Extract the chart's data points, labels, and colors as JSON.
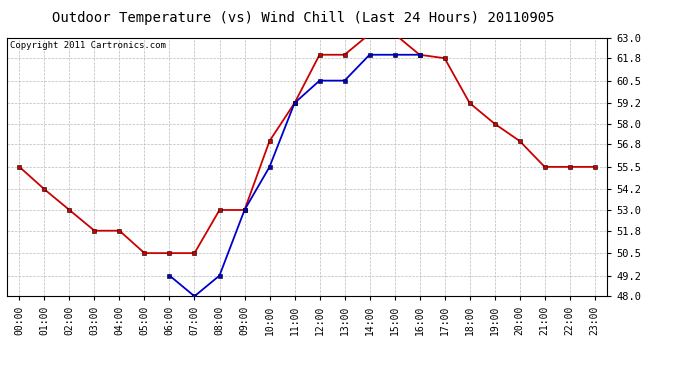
{
  "title": "Outdoor Temperature (vs) Wind Chill (Last 24 Hours) 20110905",
  "copyright": "Copyright 2011 Cartronics.com",
  "hours": [
    0,
    1,
    2,
    3,
    4,
    5,
    6,
    7,
    8,
    9,
    10,
    11,
    12,
    13,
    14,
    15,
    16,
    17,
    18,
    19,
    20,
    21,
    22,
    23
  ],
  "temp": [
    55.5,
    54.2,
    53.0,
    51.8,
    51.8,
    50.5,
    50.5,
    50.5,
    53.0,
    53.0,
    57.0,
    59.2,
    62.0,
    62.0,
    63.2,
    63.2,
    62.0,
    61.8,
    59.2,
    58.0,
    57.0,
    55.5,
    55.5,
    55.5
  ],
  "wind_chill": [
    null,
    null,
    null,
    null,
    null,
    null,
    49.2,
    48.0,
    49.2,
    53.0,
    55.5,
    59.2,
    60.5,
    60.5,
    62.0,
    62.0,
    62.0,
    null,
    null,
    null,
    null,
    null,
    null,
    null
  ],
  "temp_color": "#cc0000",
  "wind_chill_color": "#0000cc",
  "background_color": "#ffffff",
  "grid_color": "#bbbbbb",
  "ylim": [
    48.0,
    63.0
  ],
  "yticks": [
    48.0,
    49.2,
    50.5,
    51.8,
    53.0,
    54.2,
    55.5,
    56.8,
    58.0,
    59.2,
    60.5,
    61.8,
    63.0
  ],
  "title_fontsize": 10,
  "copyright_fontsize": 6.5,
  "tick_fontsize": 7,
  "marker": "s",
  "markersize": 3.5,
  "linewidth": 1.3
}
